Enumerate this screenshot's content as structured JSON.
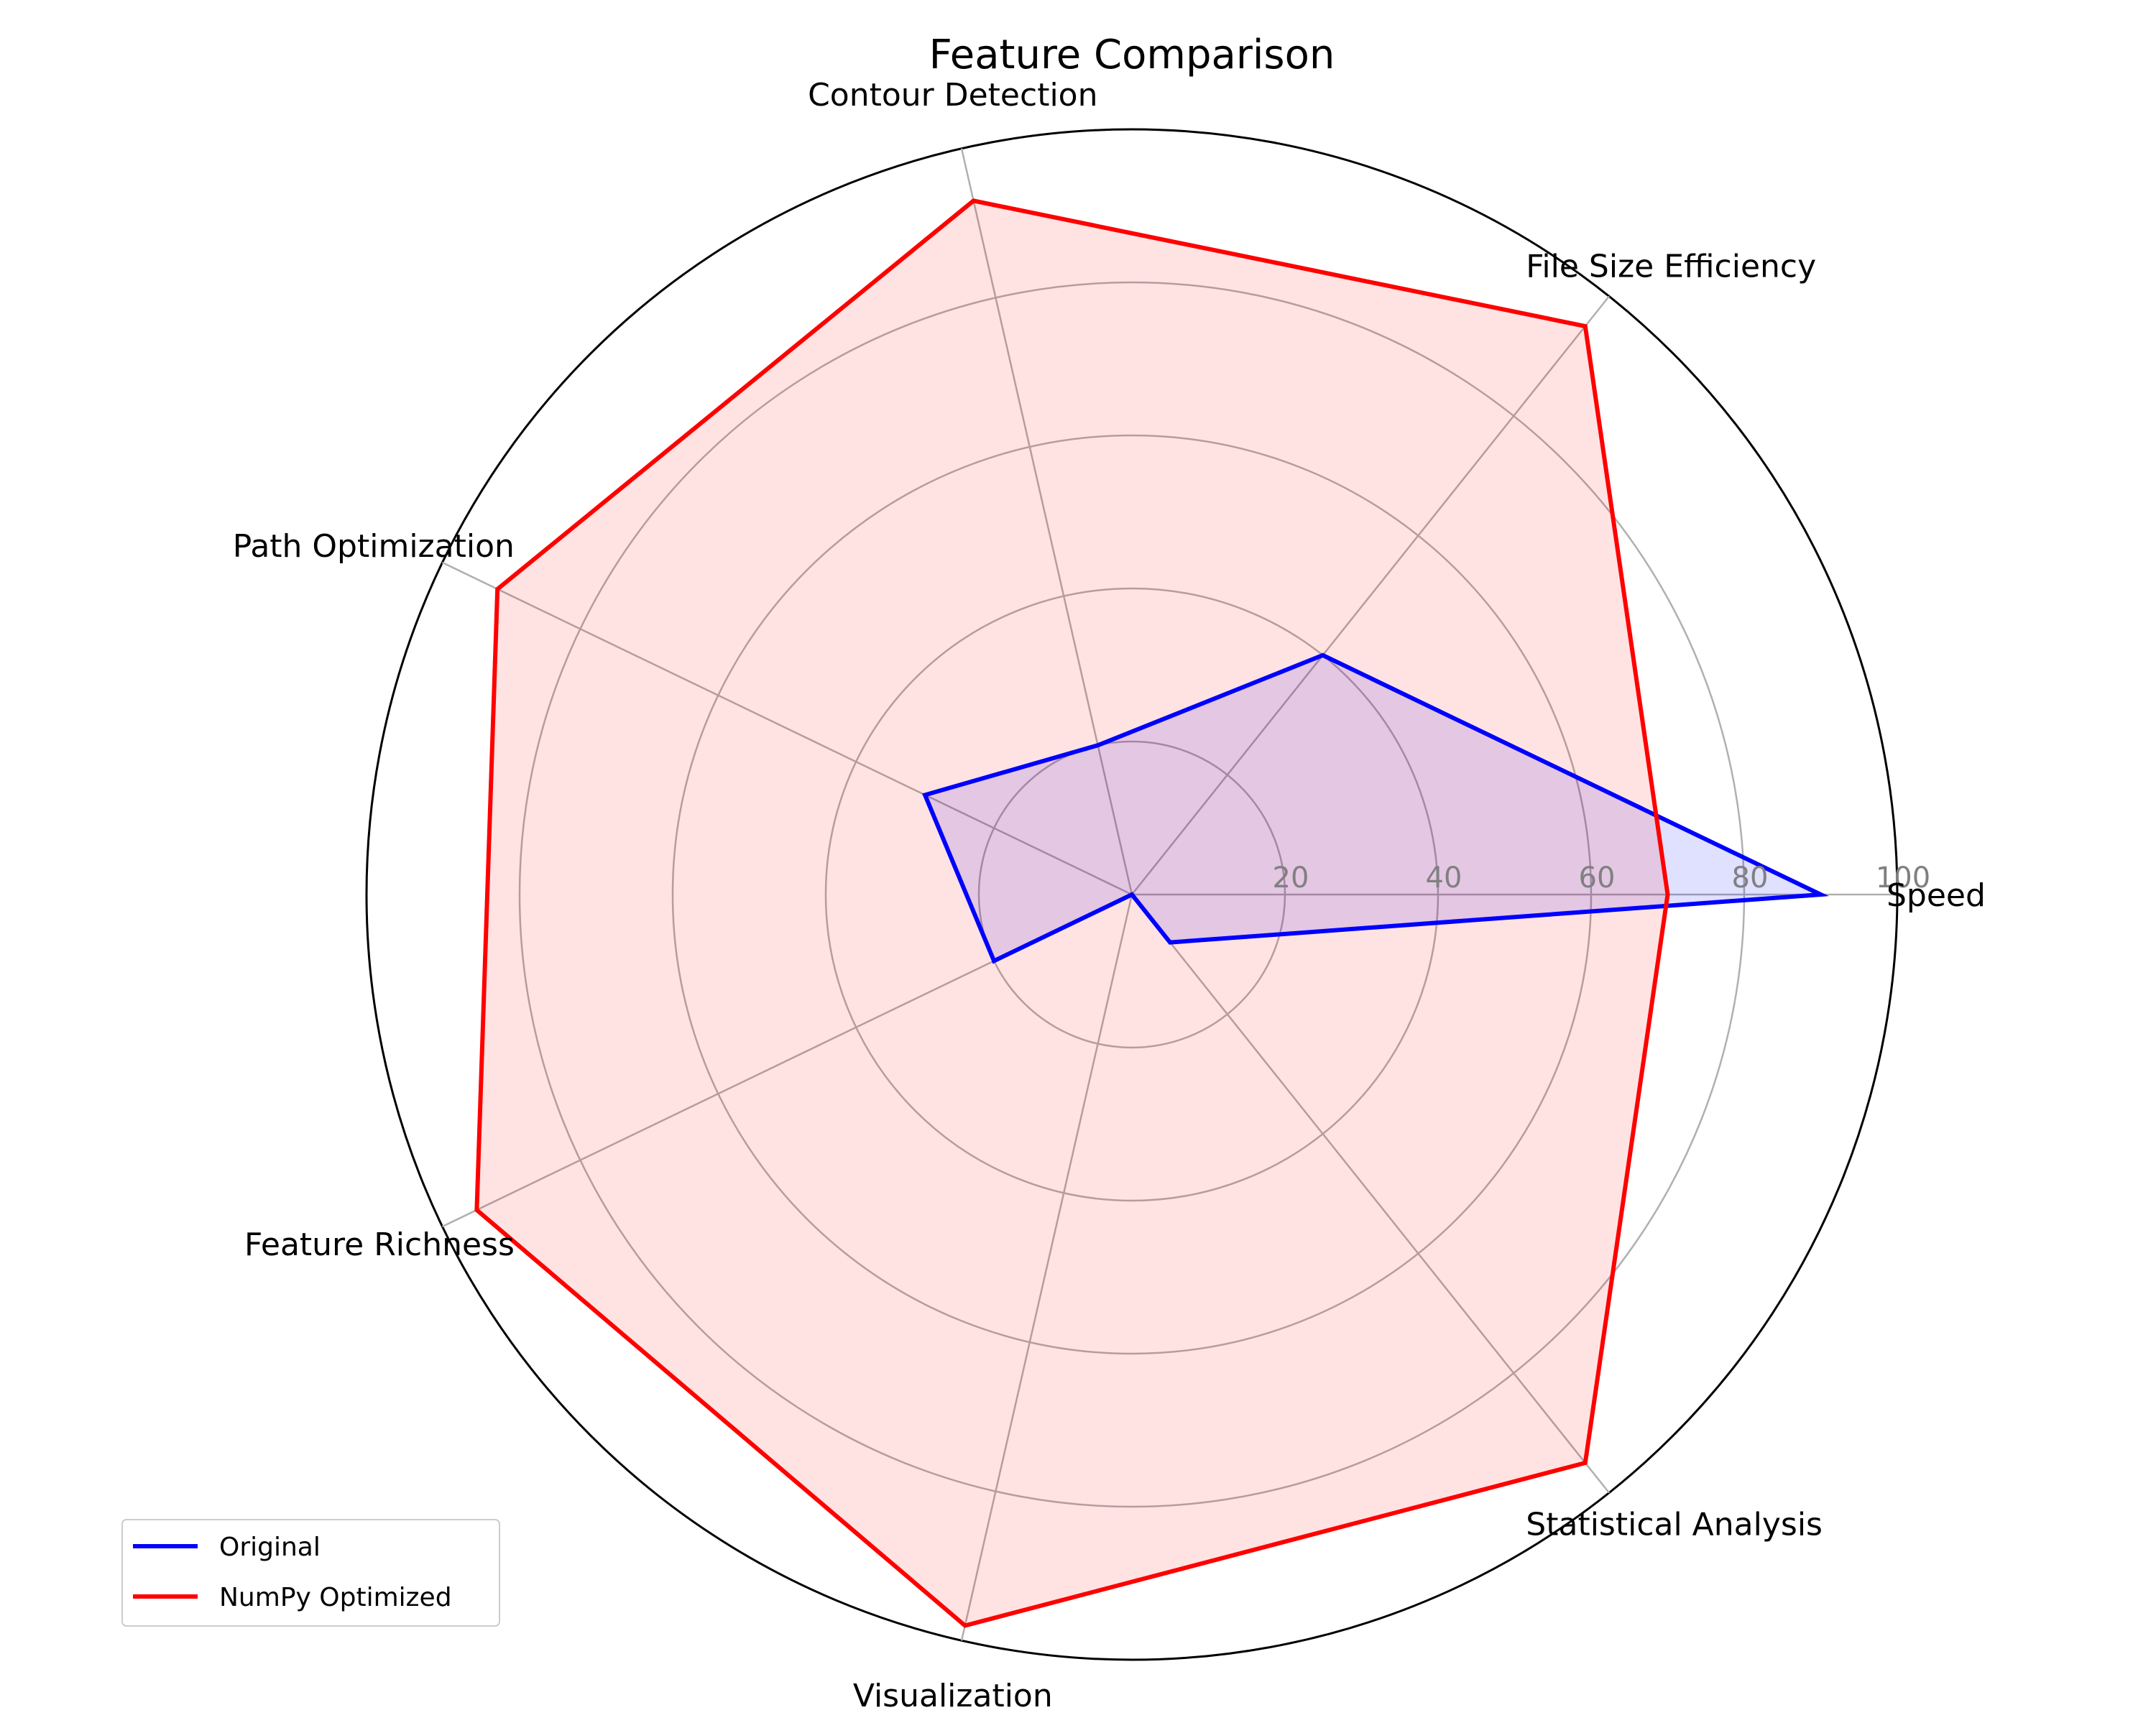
{
  "chart_data": {
    "type": "radar",
    "title": "Feature Comparison",
    "categories": [
      "Speed",
      "File Size Efficiency",
      "Contour Detection",
      "Path Optimization",
      "Feature Richness",
      "Visualization",
      "Statistical Analysis"
    ],
    "rmax": 100,
    "radial_ticks": [
      "20",
      "40",
      "60",
      "80",
      "100"
    ],
    "radial_tick_values": [
      20,
      40,
      60,
      80,
      100
    ],
    "grid": true,
    "legend_position": "lower-left",
    "series": [
      {
        "name": "Original",
        "values": [
          90,
          40,
          20,
          30,
          20,
          0,
          8
        ],
        "color": "#0000ff",
        "fill": "#0000ff"
      },
      {
        "name": "NumPy Optimized",
        "values": [
          70,
          95,
          93,
          92,
          95,
          98,
          95
        ],
        "color": "#ff0000",
        "fill": "#ff0000"
      }
    ]
  }
}
